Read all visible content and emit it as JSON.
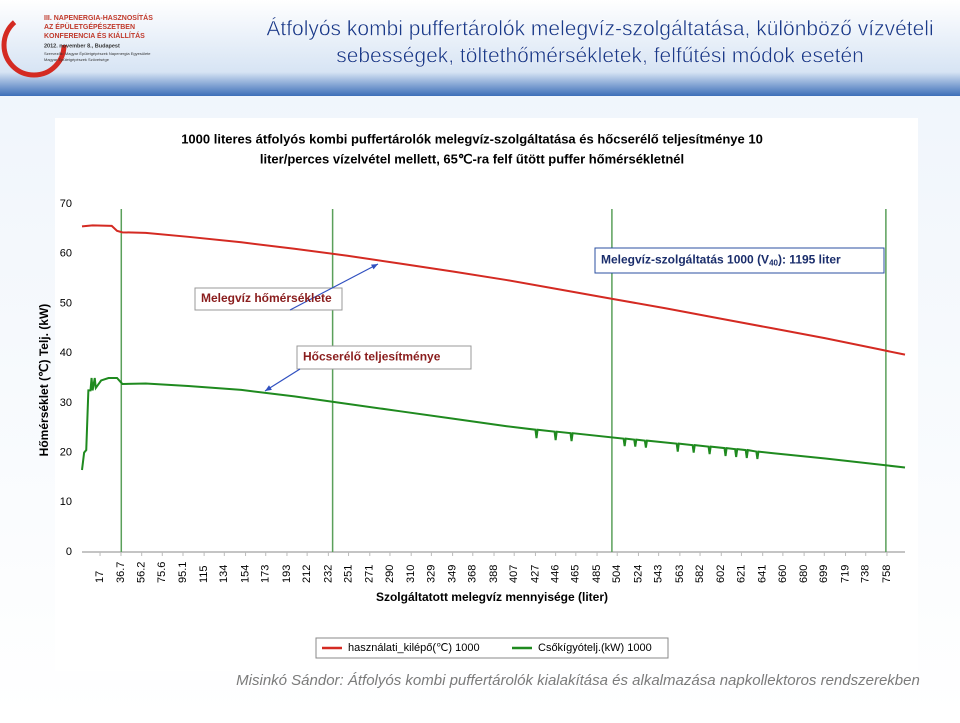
{
  "slide": {
    "title_line1": "Átfolyós kombi puffertárolók melegvíz-szolgáltatása, különböző vízvételi",
    "title_line2": "sebességek, töltethőmérsékletek, felfűtési módok esetén",
    "logo": [
      "III. NAPENERGIA-HASZNOSÍTÁS",
      "AZ ÉPÜLETGÉPÉSZETBEN",
      "KONFERENCIA ÉS KIÁLLÍTÁS",
      "2012. november 8., Budapest",
      "Szervezők: Magyar Épületgépészek Napenergia Egyesülete",
      "Magyar Épületgépészek Szövetsége"
    ],
    "footer": "Misinkó Sándor: Átfolyós kombi puffertárolók kialakítása és alkalmazása napkollektoros rendszerekben"
  },
  "chart_data": {
    "type": "line",
    "title_line1": "1000 literes átfolyós kombi puffertárolók melegvíz-szolgáltatása és hőcserélő teljesítménye 10",
    "title_line2": "liter/perces vízelvétel mellett, 65℃-ra felf űtött puffer hőmérsékletnél",
    "x_label": "Szolgáltatott melegvíz mennyisége (liter)",
    "y_label": "Hőmérséklet (℃) Telj. (kW)",
    "xlim": [
      0,
      775
    ],
    "xticks": [
      17,
      36.7,
      56.2,
      75.6,
      95.1,
      115,
      134,
      154,
      173,
      193,
      212,
      232,
      251,
      271,
      290,
      310,
      329,
      349,
      368,
      388,
      407,
      427,
      446,
      465,
      485,
      504,
      524,
      543,
      563,
      582,
      602,
      621,
      641,
      660,
      680,
      699,
      719,
      738,
      758
    ],
    "ylim": [
      0,
      70
    ],
    "yticks": [
      0,
      10,
      20,
      30,
      40,
      50,
      60,
      70
    ],
    "vlines": [
      37,
      236,
      499,
      757
    ],
    "vline_color": "#5aa05a",
    "series": [
      {
        "name": "használati_kilépő(℃) 1000",
        "color": "#d42a22",
        "x": [
          0,
          10,
          28,
          33,
          38,
          60,
          100,
          150,
          200,
          250,
          300,
          350,
          400,
          450,
          500,
          550,
          600,
          650,
          700,
          750,
          775
        ],
        "values": [
          65.5,
          65.7,
          65.6,
          64.6,
          64.3,
          64.2,
          63.4,
          62.3,
          61.0,
          59.6,
          58.0,
          56.4,
          54.7,
          52.8,
          50.9,
          49.0,
          47.0,
          45.0,
          43.0,
          40.8,
          39.7
        ]
      },
      {
        "name": "Csőkígyótelj.(kW) 1000",
        "color": "#1f8a1f",
        "x": [
          0,
          2,
          4,
          6,
          8,
          9,
          10,
          12,
          13,
          18,
          25,
          33,
          38,
          60,
          100,
          150,
          200,
          250,
          300,
          350,
          400,
          427,
          428,
          429,
          445,
          446,
          447,
          460,
          461,
          462,
          510,
          511,
          512,
          520,
          521,
          522,
          530,
          531,
          532,
          560,
          561,
          562,
          575,
          576,
          577,
          590,
          591,
          592,
          605,
          606,
          607,
          615,
          616,
          617,
          625,
          626,
          627,
          635,
          636,
          637,
          650,
          700,
          775
        ],
        "values": [
          16.5,
          20,
          20.5,
          32.5,
          32.5,
          35,
          32.5,
          35,
          33,
          34.5,
          35,
          35,
          33.8,
          33.9,
          33.4,
          32.6,
          31.3,
          29.8,
          28.3,
          26.8,
          25.3,
          24.6,
          22.9,
          24.6,
          24.2,
          22.5,
          24.2,
          23.9,
          22.3,
          23.9,
          22.8,
          21.3,
          22.8,
          22.6,
          21.2,
          22.6,
          22.4,
          21.0,
          22.4,
          21.8,
          20.2,
          21.8,
          21.5,
          20.0,
          21.5,
          21.2,
          19.7,
          21.2,
          20.9,
          19.3,
          20.9,
          20.7,
          19.1,
          20.7,
          20.5,
          18.9,
          20.5,
          20.2,
          18.7,
          20.2,
          19.9,
          18.8,
          17.0
        ]
      }
    ],
    "annotations": [
      {
        "text": "Melegvíz hőmérséklete",
        "color": "#8a1d1d"
      },
      {
        "text": "Hőcserélő teljesítménye",
        "color": "#8a1d1d"
      },
      {
        "text_parts": [
          "Melegvíz-szolgáltatás 1000 (V",
          "40",
          "): 1195 liter"
        ],
        "color": "#1a2d6b"
      }
    ]
  }
}
